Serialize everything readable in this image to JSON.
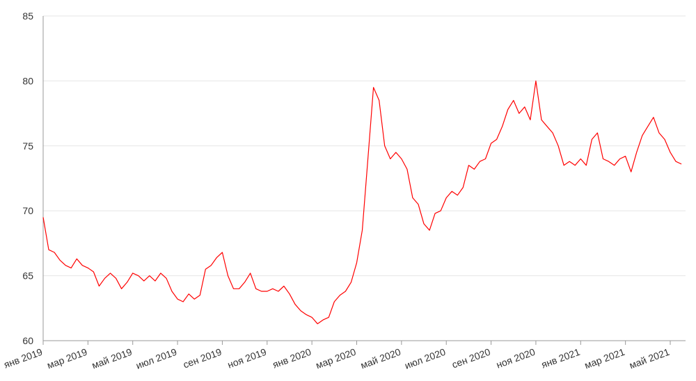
{
  "chart_data": {
    "type": "line",
    "color": "#ff0000",
    "grid": true,
    "ylim": [
      60,
      85
    ],
    "yticks": [
      60,
      65,
      70,
      75,
      80,
      85
    ],
    "categories": [
      "янв 2019",
      null,
      null,
      null,
      null,
      null,
      null,
      null,
      "мар 2019",
      null,
      null,
      null,
      null,
      null,
      null,
      null,
      "май 2019",
      null,
      null,
      null,
      null,
      null,
      null,
      null,
      "июл 2019",
      null,
      null,
      null,
      null,
      null,
      null,
      null,
      "сен 2019",
      null,
      null,
      null,
      null,
      null,
      null,
      null,
      "ноя 2019",
      null,
      null,
      null,
      null,
      null,
      null,
      null,
      "янв 2020",
      null,
      null,
      null,
      null,
      null,
      null,
      null,
      "мар 2020",
      null,
      null,
      null,
      null,
      null,
      null,
      null,
      "май 2020",
      null,
      null,
      null,
      null,
      null,
      null,
      null,
      "июл 2020",
      null,
      null,
      null,
      null,
      null,
      null,
      null,
      "сен 2020",
      null,
      null,
      null,
      null,
      null,
      null,
      null,
      "ноя 2020",
      null,
      null,
      null,
      null,
      null,
      null,
      null,
      "янв 2021",
      null,
      null,
      null,
      null,
      null,
      null,
      null,
      "мар 2021",
      null,
      null,
      null,
      null,
      null,
      null,
      null,
      "май 2021",
      null,
      null
    ],
    "values": [
      69.5,
      67.0,
      66.8,
      66.2,
      65.8,
      65.6,
      66.3,
      65.8,
      65.6,
      65.3,
      64.2,
      64.8,
      65.2,
      64.8,
      64.0,
      64.5,
      65.2,
      65.0,
      64.6,
      65.0,
      64.6,
      65.2,
      64.8,
      63.8,
      63.2,
      63.0,
      63.6,
      63.2,
      63.5,
      65.5,
      65.8,
      66.4,
      66.8,
      65.0,
      64.0,
      64.0,
      64.5,
      65.2,
      64.0,
      63.8,
      63.8,
      64.0,
      63.8,
      64.2,
      63.6,
      62.8,
      62.3,
      62.0,
      61.8,
      61.3,
      61.6,
      61.8,
      63.0,
      63.5,
      63.8,
      64.5,
      66.0,
      68.5,
      74.0,
      79.5,
      78.5,
      75.0,
      74.0,
      74.5,
      74.0,
      73.2,
      71.0,
      70.5,
      69.0,
      68.5,
      69.8,
      70.0,
      71.0,
      71.5,
      71.2,
      71.8,
      73.5,
      73.2,
      73.8,
      74.0,
      75.2,
      75.5,
      76.5,
      77.8,
      78.5,
      77.5,
      78.0,
      77.0,
      80.0,
      77.0,
      76.5,
      76.0,
      75.0,
      73.5,
      73.8,
      73.5,
      74.0,
      73.5,
      75.5,
      76.0,
      74.0,
      73.8,
      73.5,
      74.0,
      74.2,
      73.0,
      74.5,
      75.8,
      76.5,
      77.2,
      76.0,
      75.5,
      74.5,
      73.8,
      73.6
    ]
  }
}
